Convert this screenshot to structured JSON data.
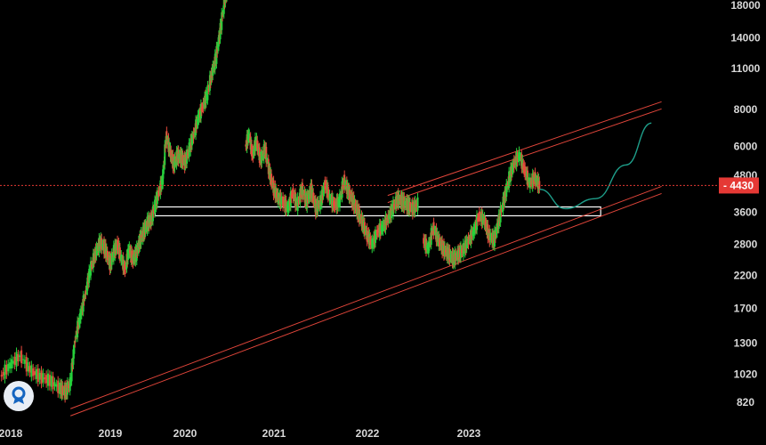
{
  "chart_data": {
    "type": "candlestick",
    "y_scale": "log",
    "ylim": [
      700,
      20000
    ],
    "y_ticks": [
      820,
      1020,
      1300,
      1700,
      2200,
      2800,
      3600,
      4800,
      6000,
      8000,
      11000,
      14000,
      18000
    ],
    "x_ticks": [
      "2018",
      "2019",
      "2020",
      "2021",
      "2022",
      "2023"
    ],
    "current_price": {
      "label": "4430",
      "value": 4430,
      "color": "#e53935"
    },
    "support_zone": {
      "low": 3500,
      "high": 3750,
      "from": "2019.6",
      "to": "2024.3"
    },
    "upper_channel": {
      "from": [
        2022.2,
        4100
      ],
      "to": [
        2024.9,
        8500
      ]
    },
    "lower_channel": {
      "from": [
        2018.6,
        780
      ],
      "to": [
        2024.9,
        4400
      ]
    },
    "projection": {
      "points": [
        [
          2023.7,
          4300
        ],
        [
          2023.95,
          3700
        ],
        [
          2024.25,
          4000
        ],
        [
          2024.55,
          5200
        ],
        [
          2024.8,
          7200
        ]
      ],
      "color": "#1e9e8a"
    },
    "price_series": [
      [
        2017.9,
        1000
      ],
      [
        2018.0,
        1100
      ],
      [
        2018.1,
        1180
      ],
      [
        2018.2,
        1050
      ],
      [
        2018.3,
        1000
      ],
      [
        2018.4,
        970
      ],
      [
        2018.5,
        910
      ],
      [
        2018.55,
        890
      ],
      [
        2018.6,
        950
      ],
      [
        2018.65,
        1350
      ],
      [
        2018.7,
        1600
      ],
      [
        2018.75,
        1900
      ],
      [
        2018.8,
        2300
      ],
      [
        2018.85,
        2600
      ],
      [
        2018.9,
        2850
      ],
      [
        2018.95,
        2700
      ],
      [
        2019.0,
        2400
      ],
      [
        2019.05,
        2650
      ],
      [
        2019.1,
        2800
      ],
      [
        2019.15,
        2500
      ],
      [
        2019.2,
        2300
      ],
      [
        2019.25,
        2700
      ],
      [
        2019.3,
        2500
      ],
      [
        2019.35,
        2600
      ],
      [
        2019.4,
        2900
      ],
      [
        2019.45,
        3100
      ],
      [
        2019.5,
        3300
      ],
      [
        2019.55,
        3400
      ],
      [
        2019.6,
        3800
      ],
      [
        2019.65,
        4200
      ],
      [
        2019.7,
        4600
      ],
      [
        2019.75,
        6500
      ],
      [
        2019.8,
        5800
      ],
      [
        2019.85,
        5200
      ],
      [
        2019.9,
        5600
      ],
      [
        2019.95,
        5500
      ],
      [
        2020.0,
        5300
      ],
      [
        2020.05,
        5900
      ],
      [
        2020.1,
        6600
      ],
      [
        2020.15,
        7500
      ],
      [
        2020.2,
        8200
      ],
      [
        2020.25,
        9000
      ],
      [
        2020.3,
        10500
      ],
      [
        2020.35,
        12000
      ],
      [
        2020.4,
        15000
      ],
      [
        2020.45,
        19000
      ],
      [
        2020.5,
        22000
      ]
    ],
    "price_series_2": [
      [
        2020.68,
        6000
      ],
      [
        2020.72,
        6600
      ],
      [
        2020.76,
        5600
      ],
      [
        2020.8,
        6300
      ],
      [
        2020.85,
        5400
      ],
      [
        2020.9,
        5900
      ],
      [
        2020.95,
        4900
      ],
      [
        2021.0,
        4300
      ],
      [
        2021.05,
        4000
      ],
      [
        2021.1,
        3900
      ],
      [
        2021.15,
        3700
      ],
      [
        2021.2,
        4200
      ],
      [
        2021.25,
        3800
      ],
      [
        2021.3,
        4300
      ],
      [
        2021.35,
        3900
      ],
      [
        2021.4,
        4300
      ],
      [
        2021.45,
        3700
      ],
      [
        2021.5,
        3900
      ],
      [
        2021.55,
        4500
      ],
      [
        2021.6,
        4000
      ],
      [
        2021.65,
        3800
      ],
      [
        2021.7,
        3900
      ],
      [
        2021.75,
        4600
      ],
      [
        2021.8,
        4200
      ],
      [
        2021.85,
        3900
      ],
      [
        2021.9,
        3600
      ],
      [
        2021.95,
        3300
      ],
      [
        2022.0,
        3000
      ],
      [
        2022.05,
        2800
      ],
      [
        2022.1,
        3100
      ],
      [
        2022.15,
        3200
      ],
      [
        2022.2,
        3400
      ],
      [
        2022.25,
        3700
      ],
      [
        2022.3,
        4000
      ],
      [
        2022.35,
        3900
      ],
      [
        2022.4,
        3800
      ],
      [
        2022.45,
        3700
      ],
      [
        2022.5,
        3850
      ]
    ],
    "price_series_3": [
      [
        2022.55,
        2900
      ],
      [
        2022.6,
        2700
      ],
      [
        2022.65,
        3200
      ],
      [
        2022.7,
        2900
      ],
      [
        2022.75,
        2700
      ],
      [
        2022.8,
        2600
      ],
      [
        2022.85,
        2500
      ],
      [
        2022.9,
        2600
      ],
      [
        2022.95,
        2700
      ],
      [
        2023.0,
        2900
      ],
      [
        2023.05,
        3100
      ],
      [
        2023.1,
        3500
      ],
      [
        2023.15,
        3400
      ],
      [
        2023.2,
        3000
      ],
      [
        2023.25,
        2900
      ],
      [
        2023.3,
        3400
      ],
      [
        2023.35,
        4000
      ],
      [
        2023.4,
        4700
      ],
      [
        2023.45,
        5300
      ],
      [
        2023.5,
        5600
      ],
      [
        2023.55,
        5000
      ],
      [
        2023.6,
        4500
      ],
      [
        2023.65,
        4700
      ],
      [
        2023.7,
        4430
      ]
    ]
  }
}
